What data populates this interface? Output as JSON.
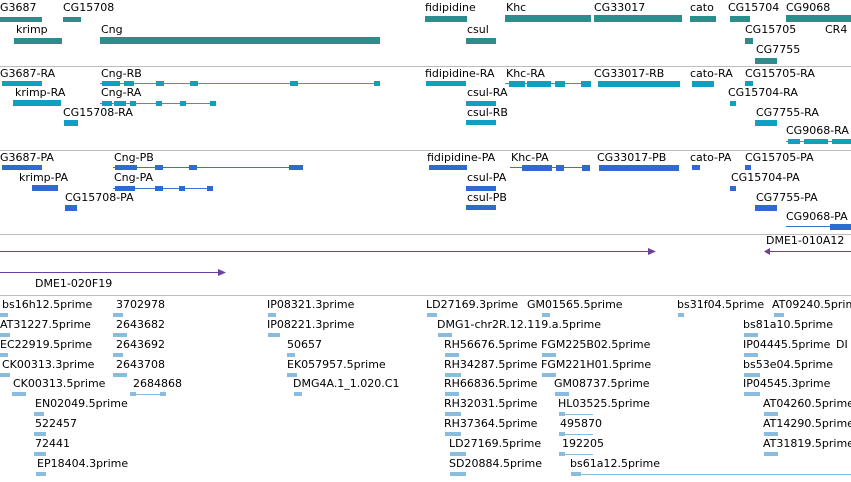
{
  "tracks": {
    "genes": [
      {
        "id": "g1",
        "label": "G3687"
      },
      {
        "id": "g2",
        "label": "CG15708"
      },
      {
        "id": "g3",
        "label": "krimp"
      },
      {
        "id": "g4",
        "label": "Cng"
      },
      {
        "id": "g5",
        "label": "fidipidine"
      },
      {
        "id": "g6",
        "label": "Khc"
      },
      {
        "id": "g7",
        "label": "CG33017"
      },
      {
        "id": "g8",
        "label": "cato"
      },
      {
        "id": "g9",
        "label": "CG15704"
      },
      {
        "id": "g10",
        "label": "CG9068"
      },
      {
        "id": "g11",
        "label": "csul"
      },
      {
        "id": "g12",
        "label": "CG15705"
      },
      {
        "id": "g13",
        "label": "CR4"
      },
      {
        "id": "g14",
        "label": "CG7755"
      }
    ],
    "transcripts_rna": [
      {
        "id": "r1",
        "label": "G3687-RA"
      },
      {
        "id": "r2",
        "label": "Cng-RB"
      },
      {
        "id": "r3",
        "label": "fidipidine-RA"
      },
      {
        "id": "r4",
        "label": "Khc-RA"
      },
      {
        "id": "r5",
        "label": "CG33017-RB"
      },
      {
        "id": "r6",
        "label": "cato-RA"
      },
      {
        "id": "r7",
        "label": "CG15705-RA"
      },
      {
        "id": "r8",
        "label": "krimp-RA"
      },
      {
        "id": "r9",
        "label": "Cng-RA"
      },
      {
        "id": "r10",
        "label": "csul-RA"
      },
      {
        "id": "r11",
        "label": "CG15704-RA"
      },
      {
        "id": "r12",
        "label": "CG15708-RA"
      },
      {
        "id": "r13",
        "label": "csul-RB"
      },
      {
        "id": "r14",
        "label": "CG7755-RA"
      },
      {
        "id": "r15",
        "label": "CG9068-RA"
      }
    ],
    "transcripts_protein": [
      {
        "id": "p1",
        "label": "G3687-PA"
      },
      {
        "id": "p2",
        "label": "Cng-PB"
      },
      {
        "id": "p3",
        "label": "fidipidine-PA"
      },
      {
        "id": "p4",
        "label": "Khc-PA"
      },
      {
        "id": "p5",
        "label": "CG33017-PB"
      },
      {
        "id": "p6",
        "label": "cato-PA"
      },
      {
        "id": "p7",
        "label": "CG15705-PA"
      },
      {
        "id": "p8",
        "label": "krimp-PA"
      },
      {
        "id": "p9",
        "label": "Cng-PA"
      },
      {
        "id": "p10",
        "label": "csul-PA"
      },
      {
        "id": "p11",
        "label": "CG15704-PA"
      },
      {
        "id": "p12",
        "label": "CG15708-PA"
      },
      {
        "id": "p13",
        "label": "csul-PB"
      },
      {
        "id": "p14",
        "label": "CG7755-PA"
      },
      {
        "id": "p15",
        "label": "CG9068-PA"
      }
    ],
    "clones": [
      {
        "id": "c1",
        "label": "DME1-010A12"
      },
      {
        "id": "c2",
        "label": "DME1-020F19"
      }
    ],
    "ests": [
      {
        "id": "e1",
        "label": "bs16h12.5prime"
      },
      {
        "id": "e2",
        "label": "3702978"
      },
      {
        "id": "e3",
        "label": "IP08321.3prime"
      },
      {
        "id": "e4",
        "label": "LD27169.3prime"
      },
      {
        "id": "e5",
        "label": "GM01565.5prime"
      },
      {
        "id": "e6",
        "label": "bs31f04.5prime"
      },
      {
        "id": "e7",
        "label": "AT09240.5prime"
      },
      {
        "id": "e8",
        "label": "AT31227.5prime"
      },
      {
        "id": "e9",
        "label": "2643682"
      },
      {
        "id": "e10",
        "label": "IP08221.3prime"
      },
      {
        "id": "e11",
        "label": "DMG1-chr2R.12.119.a.5prime"
      },
      {
        "id": "e12",
        "label": "bs81a10.5prime"
      },
      {
        "id": "e13",
        "label": "EC22919.5prime"
      },
      {
        "id": "e14",
        "label": "2643692"
      },
      {
        "id": "e15",
        "label": "50657"
      },
      {
        "id": "e16",
        "label": "RH56676.5prime"
      },
      {
        "id": "e17",
        "label": "FGM225B02.5prime"
      },
      {
        "id": "e18",
        "label": "IP04445.5prime"
      },
      {
        "id": "e19",
        "label": "CK00313.3prime"
      },
      {
        "id": "e20",
        "label": "2643708"
      },
      {
        "id": "e21",
        "label": "EK057957.5prime"
      },
      {
        "id": "e22",
        "label": "RH34287.5prime"
      },
      {
        "id": "e23",
        "label": "FGM221H01.5prime"
      },
      {
        "id": "e24",
        "label": "bs53e04.5prime"
      },
      {
        "id": "e25",
        "label": "CK00313.5prime"
      },
      {
        "id": "e26",
        "label": "2684868"
      },
      {
        "id": "e27",
        "label": "DMG4A.1_1.020.C1"
      },
      {
        "id": "e28",
        "label": "RH66836.5prime"
      },
      {
        "id": "e29",
        "label": "GM08737.5prime"
      },
      {
        "id": "e30",
        "label": "IP04545.3prime"
      },
      {
        "id": "e31",
        "label": "EN02049.5prime"
      },
      {
        "id": "e32",
        "label": "RH32031.5prime"
      },
      {
        "id": "e33",
        "label": "HL03525.5prime"
      },
      {
        "id": "e34",
        "label": "AT04260.5prime"
      },
      {
        "id": "e35",
        "label": "522457"
      },
      {
        "id": "e36",
        "label": "RH37364.5prime"
      },
      {
        "id": "e37",
        "label": "495870"
      },
      {
        "id": "e38",
        "label": "AT14290.5prime"
      },
      {
        "id": "e39",
        "label": "72441"
      },
      {
        "id": "e40",
        "label": "LD27169.5prime"
      },
      {
        "id": "e41",
        "label": "192205"
      },
      {
        "id": "e42",
        "label": "AT31819.5prime"
      },
      {
        "id": "e43",
        "label": "EP18404.3prime"
      },
      {
        "id": "e44",
        "label": "SD20884.5prime"
      },
      {
        "id": "e45",
        "label": "bs61a12.5prime"
      },
      {
        "id": "e46",
        "label": "DI"
      }
    ]
  },
  "colors": {
    "gene": "#2e8c8c",
    "rna": "#0fa0c0",
    "protein": "#3168d2",
    "clone": "#6a3fa8",
    "est": "#88bde0",
    "separator": "#bcbcbc"
  }
}
